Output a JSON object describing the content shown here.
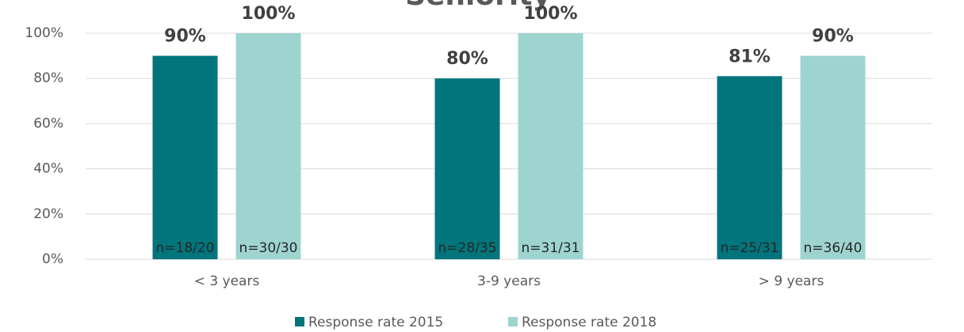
{
  "chart_data": {
    "type": "bar",
    "title": "Seniority",
    "categories": [
      "< 3 years",
      "3-9 years",
      "> 9 years"
    ],
    "series": [
      {
        "name": "Response rate 2015",
        "color": "#00757c",
        "values": [
          90,
          80,
          81
        ],
        "value_labels": [
          "90%",
          "80%",
          "81%"
        ],
        "annotations": [
          "n=18/20",
          "n=28/35",
          "n=25/31"
        ]
      },
      {
        "name": "Response rate 2018",
        "color": "#9ed4d0",
        "values": [
          100,
          100,
          90
        ],
        "value_labels": [
          "100%",
          "100%",
          "90%"
        ],
        "annotations": [
          "n=30/30",
          "n=31/31",
          "n=36/40"
        ]
      }
    ],
    "ylim": [
      0,
      100
    ],
    "yticks": [
      {
        "value": 0,
        "label": "0%"
      },
      {
        "value": 20,
        "label": "20%"
      },
      {
        "value": 40,
        "label": "40%"
      },
      {
        "value": 60,
        "label": "60%"
      },
      {
        "value": 80,
        "label": "80%"
      },
      {
        "value": 100,
        "label": "100%"
      }
    ],
    "grid": true,
    "legend": "bottom"
  }
}
